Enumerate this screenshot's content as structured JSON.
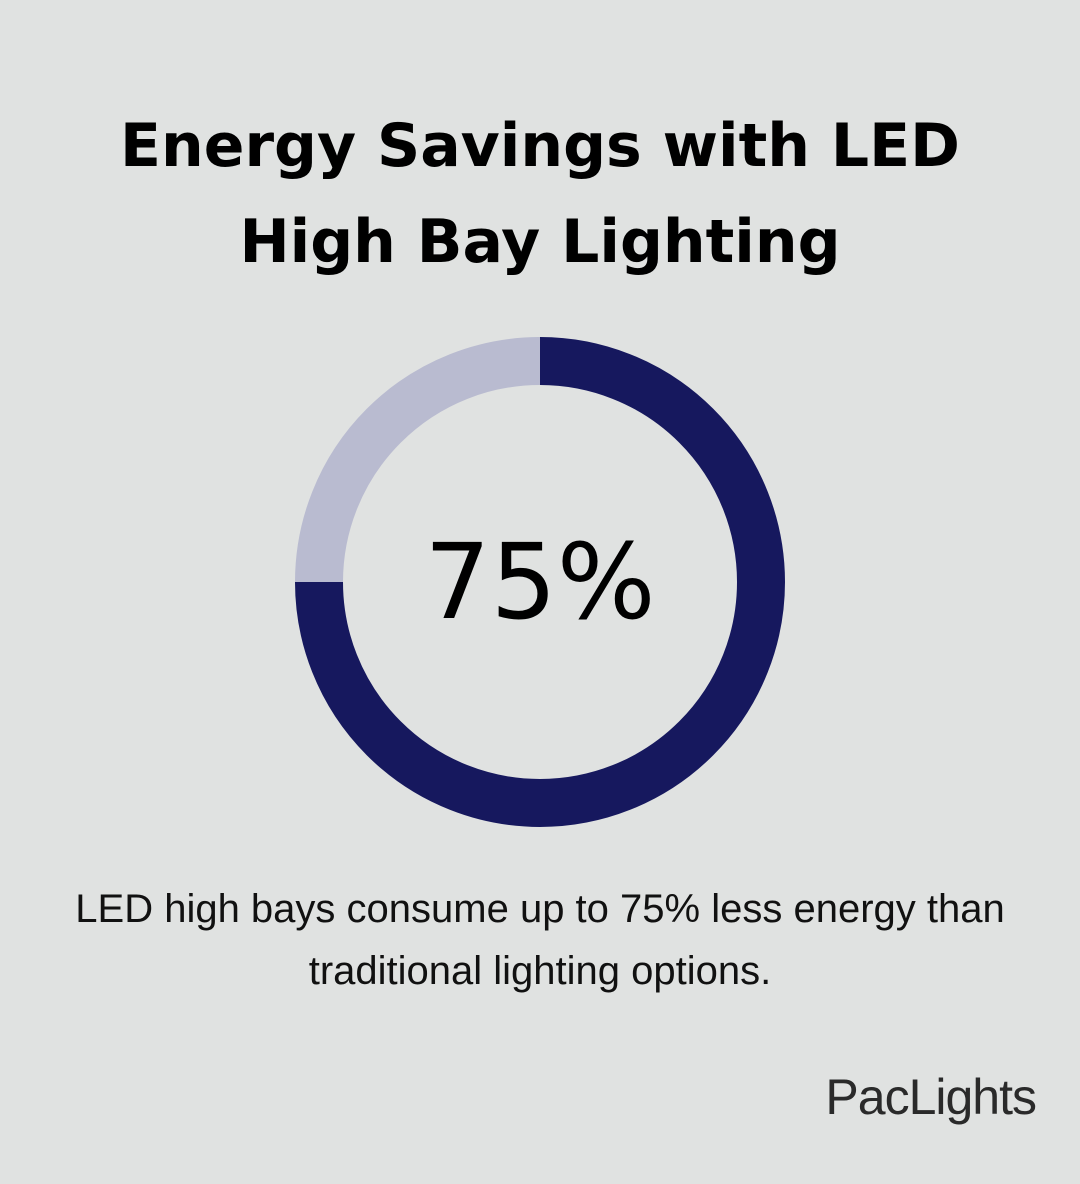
{
  "chart_data": {
    "type": "donut",
    "title": "Energy Savings with LED High Bay Lighting",
    "categories": [
      null,
      null
    ],
    "values": [
      75,
      25
    ],
    "value_labels": [
      "75%",
      null
    ],
    "colors": [
      "#16185e",
      "#b9bbd0"
    ],
    "description": "LED high bays consume up to 75% less energy than traditional lighting options.",
    "brand": "PacLights"
  }
}
